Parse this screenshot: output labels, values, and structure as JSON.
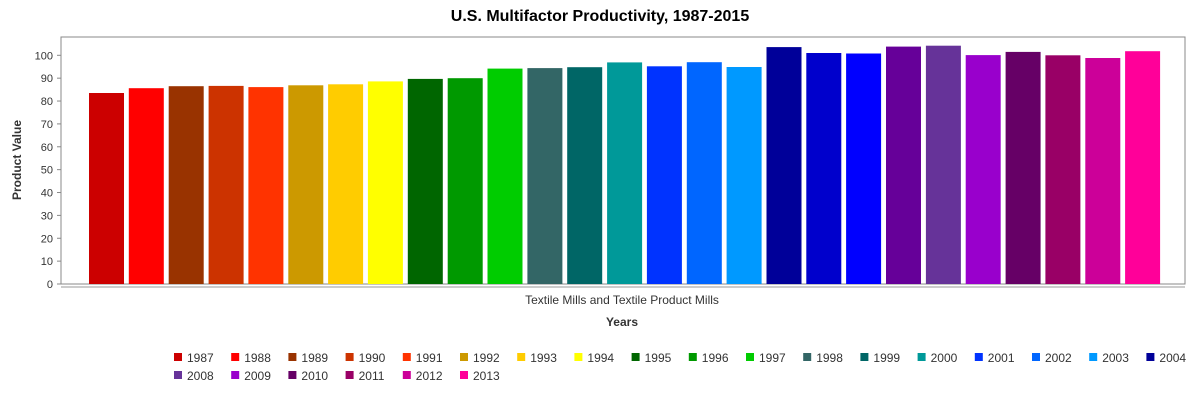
{
  "chart_data": {
    "type": "bar",
    "title": "U.S. Multifactor Productivity, 1987-2015",
    "xlabel": "Years",
    "ylabel": "Product Value",
    "category": "Textile Mills and Textile Product Mills",
    "ylim": [
      0,
      108
    ],
    "yticks": [
      0,
      10,
      20,
      30,
      40,
      50,
      60,
      70,
      80,
      90,
      100
    ],
    "grid": false,
    "legend_placement": "bottom",
    "series": [
      {
        "name": "1987",
        "value": 83.5,
        "color": "#cc0000"
      },
      {
        "name": "1988",
        "value": 85.6,
        "color": "#ff0000"
      },
      {
        "name": "1989",
        "value": 86.5,
        "color": "#993300"
      },
      {
        "name": "1990",
        "value": 86.6,
        "color": "#cc3300"
      },
      {
        "name": "1991",
        "value": 86.1,
        "color": "#ff3300"
      },
      {
        "name": "1992",
        "value": 86.9,
        "color": "#cc9900"
      },
      {
        "name": "1993",
        "value": 87.3,
        "color": "#ffcc00"
      },
      {
        "name": "1994",
        "value": 88.6,
        "color": "#ffff00"
      },
      {
        "name": "1995",
        "value": 89.7,
        "color": "#006600"
      },
      {
        "name": "1996",
        "value": 90.0,
        "color": "#009900"
      },
      {
        "name": "1997",
        "value": 94.2,
        "color": "#00cc00"
      },
      {
        "name": "1998",
        "value": 94.4,
        "color": "#336666"
      },
      {
        "name": "1999",
        "value": 94.8,
        "color": "#006666"
      },
      {
        "name": "2000",
        "value": 96.9,
        "color": "#009999"
      },
      {
        "name": "2001",
        "value": 95.2,
        "color": "#0033ff"
      },
      {
        "name": "2002",
        "value": 97.0,
        "color": "#0066ff"
      },
      {
        "name": "2003",
        "value": 94.9,
        "color": "#0099ff"
      },
      {
        "name": "2004",
        "value": 103.6,
        "color": "#000099"
      },
      {
        "name": "2005",
        "value": 101.0,
        "color": "#0000cc"
      },
      {
        "name": "2006",
        "value": 100.8,
        "color": "#0000ff"
      },
      {
        "name": "2007",
        "value": 103.8,
        "color": "#660099"
      },
      {
        "name": "2008",
        "value": 104.2,
        "color": "#663399"
      },
      {
        "name": "2009",
        "value": 100.1,
        "color": "#9900cc"
      },
      {
        "name": "2010",
        "value": 101.5,
        "color": "#660066"
      },
      {
        "name": "2011",
        "value": 100.0,
        "color": "#990066"
      },
      {
        "name": "2012",
        "value": 98.8,
        "color": "#cc0099"
      },
      {
        "name": "2013",
        "value": 101.8,
        "color": "#ff0099"
      }
    ]
  }
}
